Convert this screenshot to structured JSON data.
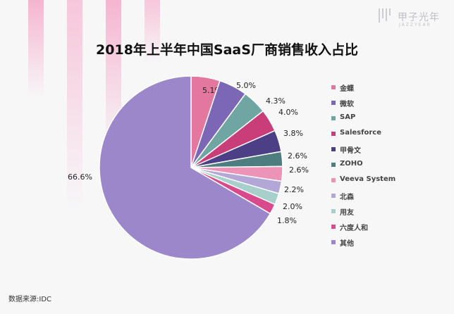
{
  "brand": {
    "name": "甲子光年",
    "sub": "JAZZYEAR"
  },
  "source": "数据来源:IDC",
  "chart_data": {
    "type": "pie",
    "title": "2018年上半年中国SaaS厂商销售收入占比",
    "legend_position": "right",
    "slices": [
      {
        "label": "金蝶",
        "value": 5.1,
        "display": "5.1%",
        "color": "#e4779e"
      },
      {
        "label": "微软",
        "value": 5.0,
        "display": "5.0%",
        "color": "#7b67b5"
      },
      {
        "label": "SAP",
        "value": 4.3,
        "display": "4.3%",
        "color": "#6fa5a3"
      },
      {
        "label": "Salesforce",
        "value": 4.0,
        "display": "4.0%",
        "color": "#c93d78"
      },
      {
        "label": "甲骨文",
        "value": 3.8,
        "display": "3.8%",
        "color": "#4d3f86"
      },
      {
        "label": "ZOHO",
        "value": 2.6,
        "display": "2.6%",
        "color": "#4d7d7e"
      },
      {
        "label": "Veeva System",
        "value": 2.6,
        "display": "2.6%",
        "color": "#ee93b8"
      },
      {
        "label": "北森",
        "value": 2.2,
        "display": "2.2%",
        "color": "#b3a7d8"
      },
      {
        "label": "用友",
        "value": 2.0,
        "display": "2.0%",
        "color": "#a7cfcc"
      },
      {
        "label": "六度人和",
        "value": 1.8,
        "display": "1.8%",
        "color": "#d94a8c"
      },
      {
        "label": "其他",
        "value": 66.6,
        "display": "66.6%",
        "color": "#9b87c9"
      }
    ]
  }
}
